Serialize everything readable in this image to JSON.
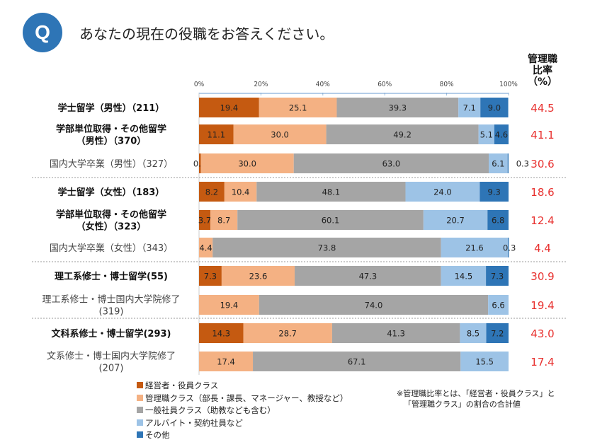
{
  "question": {
    "badge": "Q",
    "text": "あなたの現在の役職をお答えください。"
  },
  "chart_data": {
    "type": "bar",
    "orientation": "horizontal",
    "stacked": "100%",
    "xlim": [
      0,
      100
    ],
    "x_ticks": [
      "0%",
      "20%",
      "40%",
      "60%",
      "80%",
      "100%"
    ],
    "ratio_header": [
      "管理職",
      "比率",
      "（%）"
    ],
    "series": [
      {
        "name": "経営者・役員クラス",
        "color": "#c55a11"
      },
      {
        "name": "管理職クラス（部長・課長、マネージャー、教授など）",
        "color": "#f4b183"
      },
      {
        "name": "一般社員クラス（助教なども含む）",
        "color": "#a5a5a5"
      },
      {
        "name": "アルバイト・契約社員など",
        "color": "#9dc3e6"
      },
      {
        "name": "その他",
        "color": "#2e75b6"
      }
    ],
    "categories": [
      {
        "label": [
          "学士留学（男性）（211）"
        ],
        "bold": true,
        "values": [
          19.4,
          25.1,
          39.3,
          7.1,
          9.0
        ],
        "labels": [
          "19.4",
          "25.1",
          "39.3",
          "7.1",
          "9.0"
        ],
        "ratio": "44.5"
      },
      {
        "label": [
          "学部単位取得・その他留学",
          "（男性）（370）"
        ],
        "bold": true,
        "values": [
          11.1,
          30.0,
          49.2,
          5.1,
          4.6
        ],
        "labels": [
          "11.1",
          "30.0",
          "49.2",
          "5.1",
          "4.6"
        ],
        "ratio": "41.1"
      },
      {
        "label": [
          "国内大学卒業（男性）（327）"
        ],
        "bold": false,
        "values": [
          0.6,
          30.0,
          63.0,
          6.1,
          0.3
        ],
        "labels": [
          "0.6",
          "30.0",
          "63.0",
          "6.1",
          "0.3"
        ],
        "ratio": "30.6"
      },
      {
        "label": [
          "学士留学（女性）（183）"
        ],
        "bold": true,
        "values": [
          8.2,
          10.4,
          48.1,
          24.0,
          9.3
        ],
        "labels": [
          "8.2",
          "10.4",
          "48.1",
          "24.0",
          "9.3"
        ],
        "ratio": "18.6"
      },
      {
        "label": [
          "学部単位取得・その他留学",
          "（女性）（323）"
        ],
        "bold": true,
        "values": [
          3.7,
          8.7,
          60.1,
          20.7,
          6.8
        ],
        "labels": [
          "3.7",
          "8.7",
          "60.1",
          "20.7",
          "6.8"
        ],
        "ratio": "12.4"
      },
      {
        "label": [
          "国内大学卒業（女性）（343）"
        ],
        "bold": false,
        "values": [
          0,
          4.4,
          73.8,
          21.6,
          0.3
        ],
        "labels": [
          "",
          "4.4",
          "73.8",
          "21.6",
          "0.3"
        ],
        "ratio": "4.4"
      },
      {
        "label": [
          "理工系修士・博士留学(55)"
        ],
        "bold": true,
        "values": [
          7.3,
          23.6,
          47.3,
          14.5,
          7.3
        ],
        "labels": [
          "7.3",
          "23.6",
          "47.3",
          "14.5",
          "7.3"
        ],
        "ratio": "30.9"
      },
      {
        "label": [
          "理工系修士・博士国内大学院修了",
          "(319)"
        ],
        "bold": false,
        "values": [
          0,
          19.4,
          74.0,
          6.6,
          0
        ],
        "labels": [
          "",
          "19.4",
          "74.0",
          "6.6",
          ""
        ],
        "ratio": "19.4"
      },
      {
        "label": [
          "文科系修士・博士留学(293)"
        ],
        "bold": true,
        "values": [
          14.3,
          28.7,
          41.3,
          8.5,
          7.2
        ],
        "labels": [
          "14.3",
          "28.7",
          "41.3",
          "8.5",
          "7.2"
        ],
        "ratio": "43.0"
      },
      {
        "label": [
          "文系修士・博士国内大学院修了",
          "(207)"
        ],
        "bold": false,
        "values": [
          0,
          17.4,
          67.1,
          15.5,
          0
        ],
        "labels": [
          "",
          "17.4",
          "67.1",
          "15.5",
          ""
        ],
        "ratio": "17.4"
      }
    ],
    "ratio_color": "#e8312f",
    "note": [
      "※管理職比率とは、「経営者・役員クラス」と",
      "「管理職クラス」の割合の合計値"
    ]
  }
}
